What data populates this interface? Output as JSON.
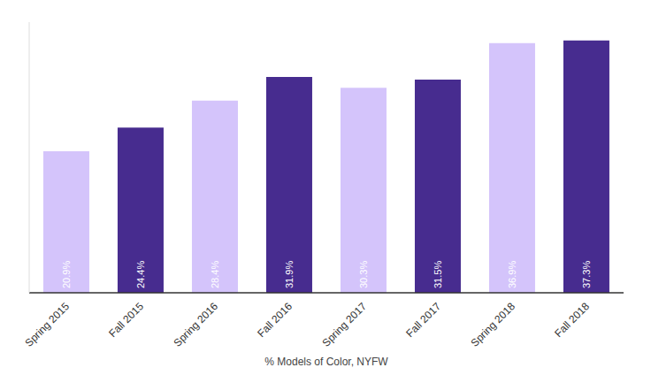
{
  "chart_data": {
    "type": "bar",
    "x_label": "% Models of Color, NYFW",
    "categories": [
      "Spring 2015",
      "Fall 2015",
      "Spring 2016",
      "Fall 2016",
      "Spring 2017",
      "Fall 2017",
      "Spring 2018",
      "Fall 2018"
    ],
    "values": [
      20.9,
      24.4,
      28.4,
      31.9,
      30.3,
      31.5,
      36.9,
      37.3
    ],
    "value_labels": [
      "20.9%",
      "24.4%",
      "28.4%",
      "31.9%",
      "30.3%",
      "31.5%",
      "36.9%",
      "37.3%"
    ],
    "colors": [
      "#d4c4fb",
      "#472c8f",
      "#d4c4fb",
      "#472c8f",
      "#d4c4fb",
      "#472c8f",
      "#d4c4fb",
      "#472c8f"
    ],
    "ylim": [
      0,
      40
    ],
    "grid": false,
    "data_labels": true,
    "tick_labels": "x"
  }
}
